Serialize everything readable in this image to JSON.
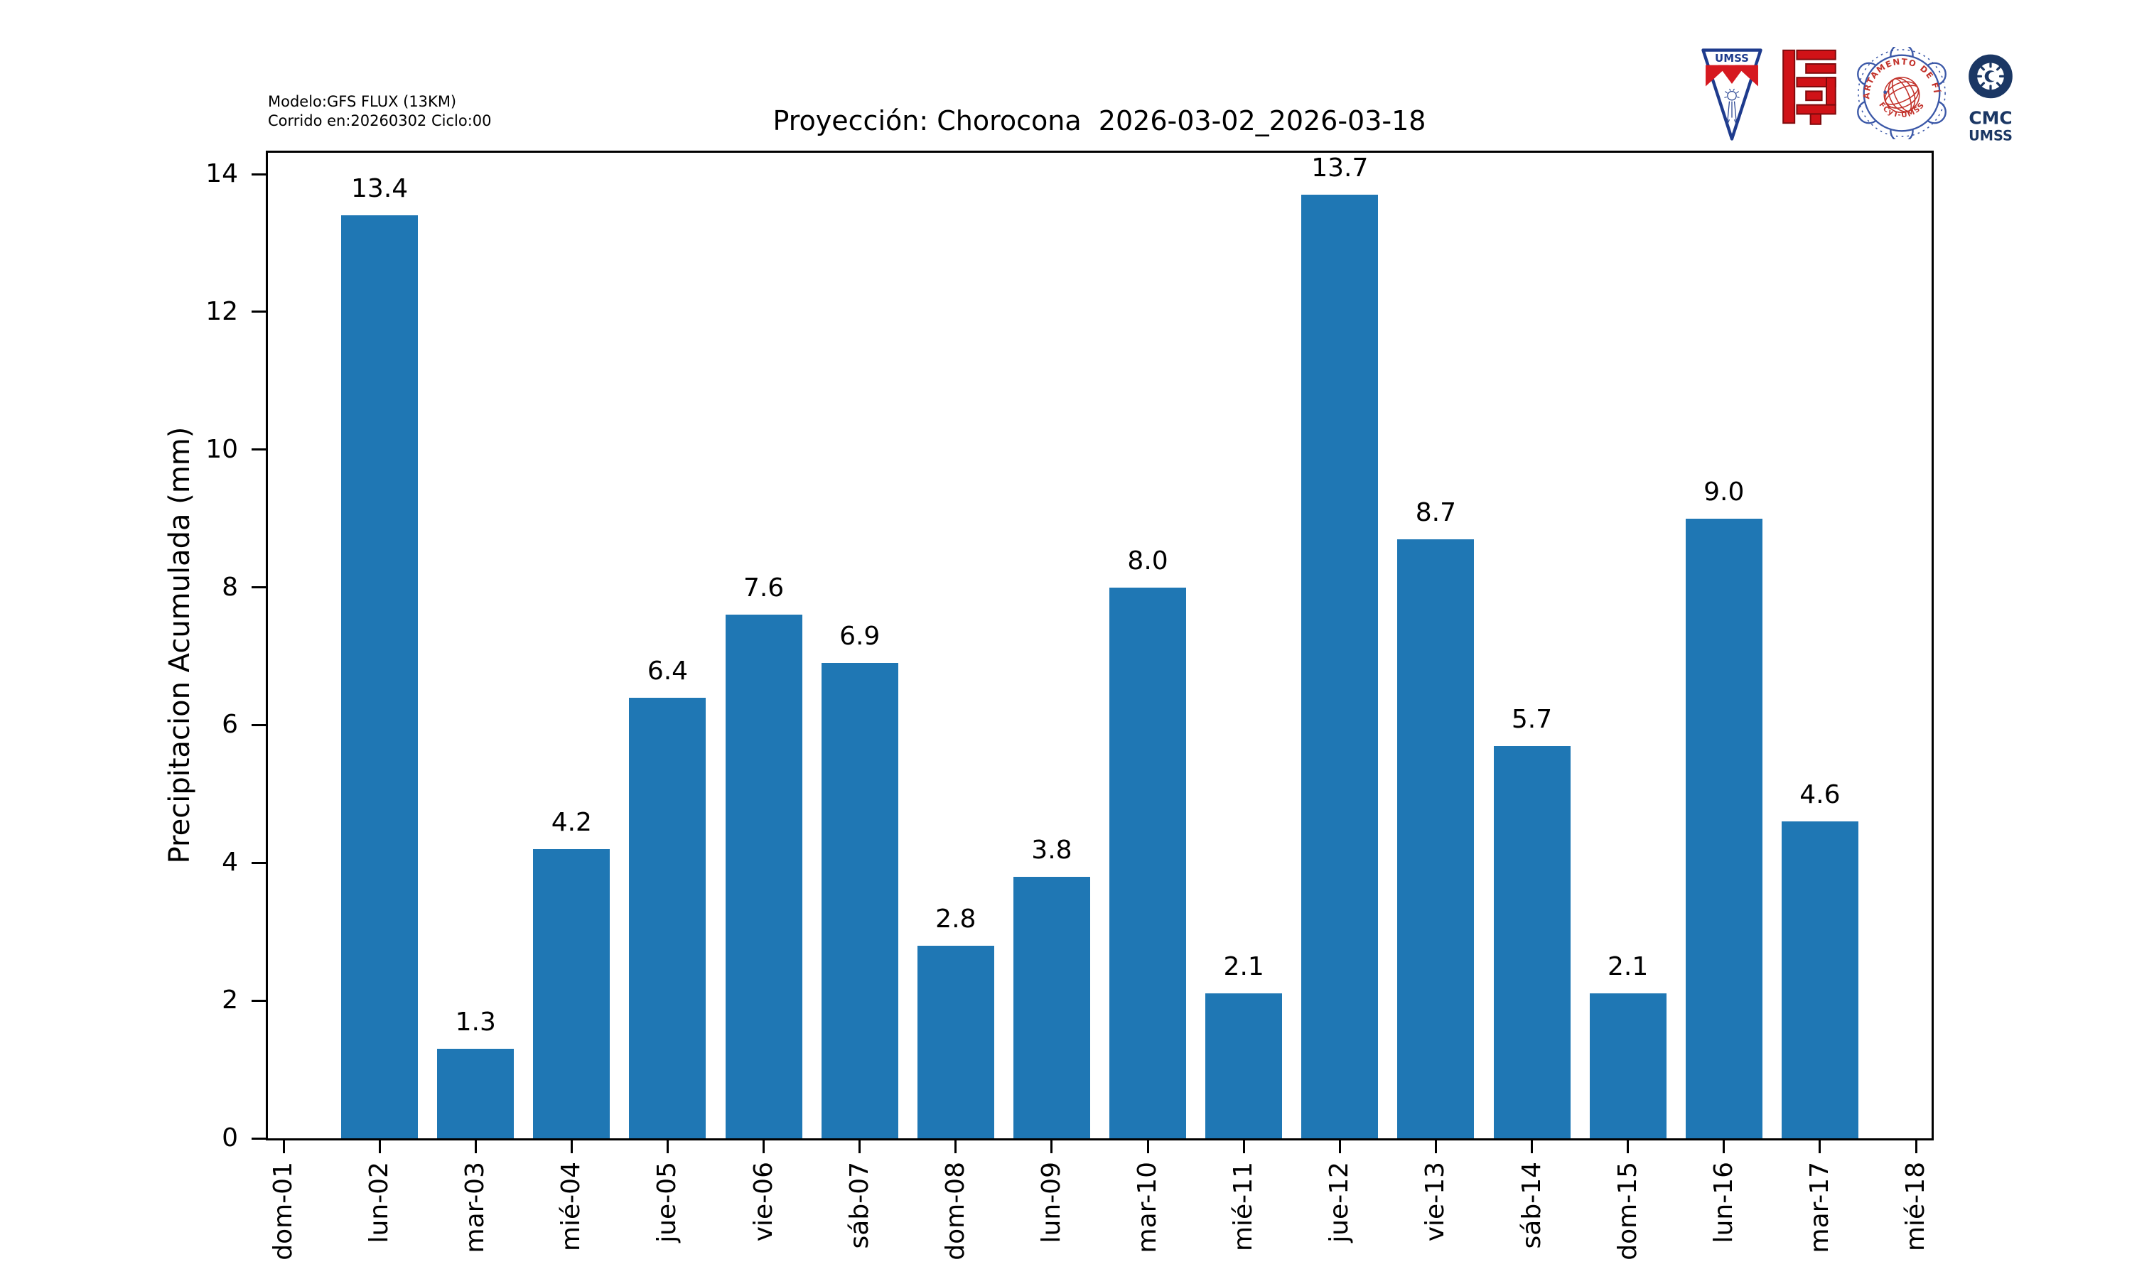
{
  "header": {
    "model_line": "Modelo:GFS FLUX (13KM)",
    "run_line": "Corrido en:20260302 Ciclo:00"
  },
  "logos": [
    {
      "name": "umss-pennant-logo",
      "text": "UMSS"
    },
    {
      "name": "fcyt-red-maze-logo"
    },
    {
      "name": "fisica-seal-logo",
      "text_top": "DEPARTAMENTO DE FÍSICA",
      "text_bottom": "FCyT-UMSS"
    },
    {
      "name": "cmc-logo",
      "line1": "CMC",
      "line2": "UMSS"
    }
  ],
  "chart_data": {
    "type": "bar",
    "title": "Proyección: Chorocona  2026-03-02_2026-03-18",
    "categories": [
      "dom-01",
      "lun-02",
      "mar-03",
      "mié-04",
      "jue-05",
      "vie-06",
      "sáb-07",
      "dom-08",
      "lun-09",
      "mar-10",
      "mié-11",
      "jue-12",
      "vie-13",
      "sáb-14",
      "dom-15",
      "lun-16",
      "mar-17",
      "mié-18"
    ],
    "values": [
      null,
      13.4,
      1.3,
      4.2,
      6.4,
      7.6,
      6.9,
      2.8,
      3.8,
      8.0,
      2.1,
      13.7,
      8.7,
      5.7,
      2.1,
      9.0,
      4.6,
      null
    ],
    "bar_value_labels": [
      "",
      "13.4",
      "1.3",
      "4.2",
      "6.4",
      "7.6",
      "6.9",
      "2.8",
      "3.8",
      "8.0",
      "2.1",
      "13.7",
      "8.7",
      "5.7",
      "2.1",
      "9.0",
      "4.6",
      ""
    ],
    "xlabel": "",
    "ylabel": "Precipitacion Acumulada (mm)",
    "yticks": [
      0,
      2,
      4,
      6,
      8,
      10,
      12,
      14
    ],
    "ylim": [
      0,
      14.31
    ],
    "x_tick_rotation": 90,
    "grid": false,
    "legend": null,
    "bar_color": "#1f77b4",
    "spine_color": "#000000"
  }
}
